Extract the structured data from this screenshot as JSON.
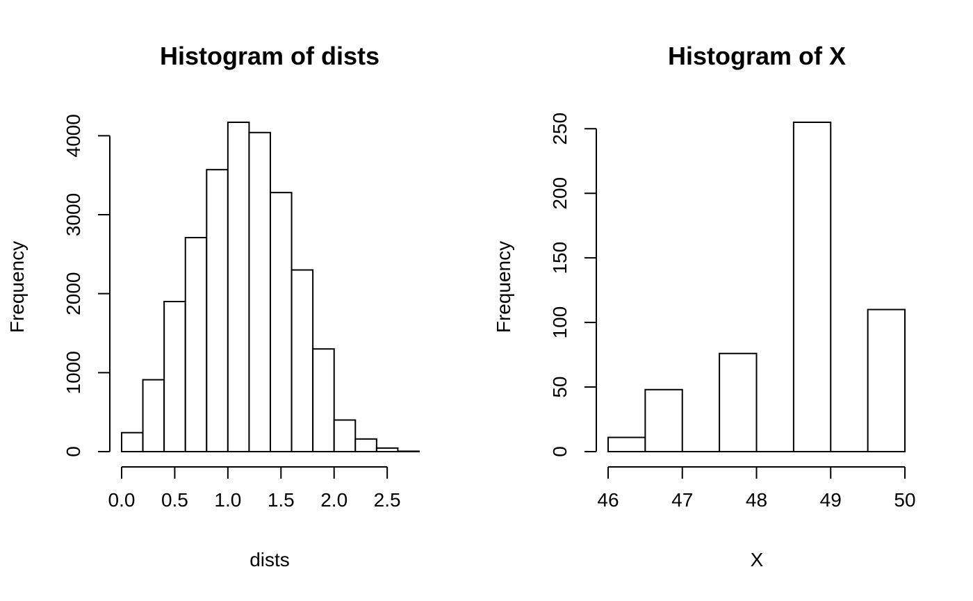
{
  "chart_data": [
    {
      "type": "bar",
      "title": "Histogram of dists",
      "xlabel": "dists",
      "ylabel": "Frequency",
      "bins": [
        {
          "start": 0.0,
          "end": 0.2,
          "value": 240
        },
        {
          "start": 0.2,
          "end": 0.4,
          "value": 910
        },
        {
          "start": 0.4,
          "end": 0.6,
          "value": 1900
        },
        {
          "start": 0.6,
          "end": 0.8,
          "value": 2710
        },
        {
          "start": 0.8,
          "end": 1.0,
          "value": 3570
        },
        {
          "start": 1.0,
          "end": 1.2,
          "value": 4170
        },
        {
          "start": 1.2,
          "end": 1.4,
          "value": 4040
        },
        {
          "start": 1.4,
          "end": 1.6,
          "value": 3280
        },
        {
          "start": 1.6,
          "end": 1.8,
          "value": 2300
        },
        {
          "start": 1.8,
          "end": 2.0,
          "value": 1300
        },
        {
          "start": 2.0,
          "end": 2.2,
          "value": 400
        },
        {
          "start": 2.2,
          "end": 2.4,
          "value": 160
        },
        {
          "start": 2.4,
          "end": 2.6,
          "value": 45
        },
        {
          "start": 2.6,
          "end": 2.8,
          "value": 5
        }
      ],
      "xlim": [
        0.0,
        2.8
      ],
      "ylim": [
        0,
        4170
      ],
      "xticks": [
        0.0,
        0.5,
        1.0,
        1.5,
        2.0,
        2.5
      ],
      "xtick_labels": [
        "0.0",
        "0.5",
        "1.0",
        "1.5",
        "2.0",
        "2.5"
      ],
      "yticks": [
        0,
        1000,
        2000,
        3000,
        4000
      ],
      "ytick_labels": [
        "0",
        "1000",
        "2000",
        "3000",
        "4000"
      ],
      "grid": false
    },
    {
      "type": "bar",
      "title": "Histogram of X",
      "xlabel": "X",
      "ylabel": "Frequency",
      "bins": [
        {
          "start": 46.0,
          "end": 46.5,
          "value": 11
        },
        {
          "start": 46.5,
          "end": 47.0,
          "value": 48
        },
        {
          "start": 47.0,
          "end": 47.5,
          "value": 0
        },
        {
          "start": 47.5,
          "end": 48.0,
          "value": 76
        },
        {
          "start": 48.0,
          "end": 48.5,
          "value": 0
        },
        {
          "start": 48.5,
          "end": 49.0,
          "value": 255
        },
        {
          "start": 49.0,
          "end": 49.5,
          "value": 0
        },
        {
          "start": 49.5,
          "end": 50.0,
          "value": 110
        }
      ],
      "xlim": [
        46,
        50
      ],
      "ylim": [
        0,
        255
      ],
      "xticks": [
        46,
        47,
        48,
        49,
        50
      ],
      "xtick_labels": [
        "46",
        "47",
        "48",
        "49",
        "50"
      ],
      "yticks": [
        0,
        50,
        100,
        150,
        200,
        250
      ],
      "ytick_labels": [
        "0",
        "50",
        "100",
        "150",
        "200",
        "250"
      ],
      "grid": false
    }
  ]
}
